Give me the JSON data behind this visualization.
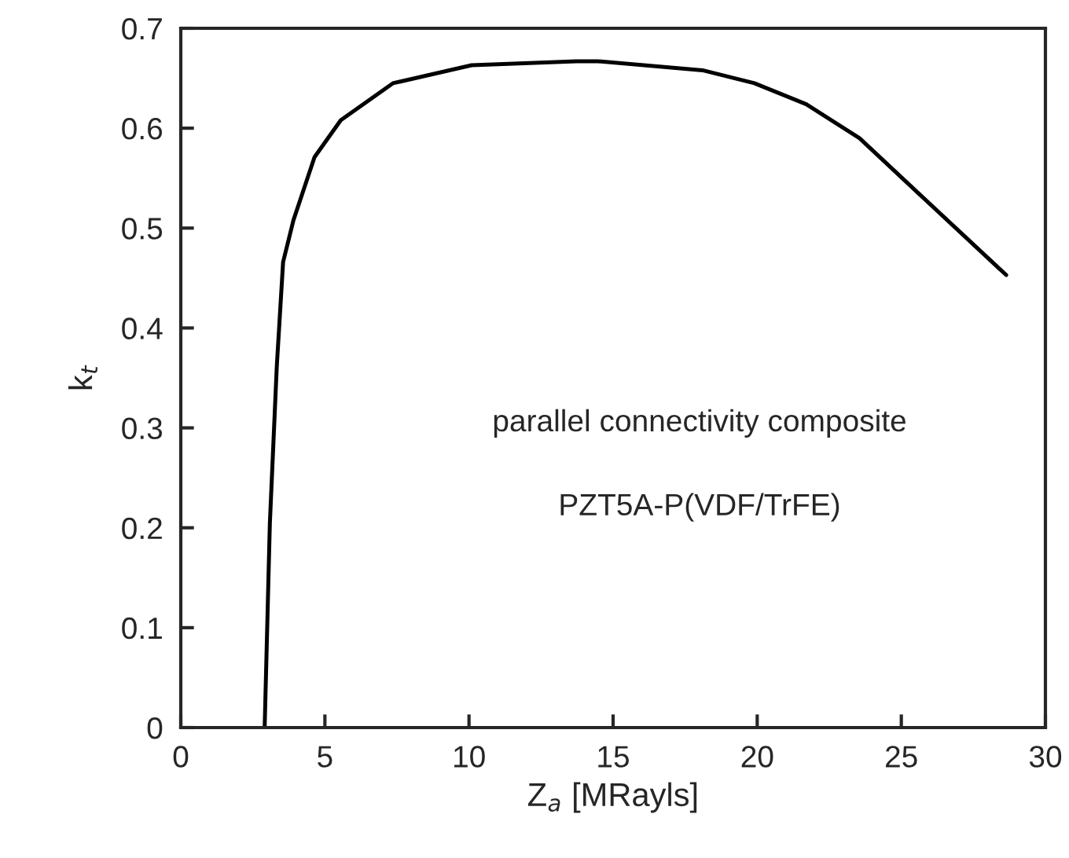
{
  "chart_data": {
    "type": "line",
    "xlabel": "Z$_{a}$ [MRayls]",
    "ylabel": "k$_{t}$",
    "annotations": [
      "parallel connectivity composite",
      "PZT5A-P(VDF/TrFE)"
    ],
    "series": [
      {
        "color": "#000000",
        "x": [
          2.91,
          3.09,
          3.33,
          3.55,
          3.91,
          4.64,
          5.55,
          7.36,
          10.09,
          13.73,
          14.46,
          18.1,
          19.9,
          21.7,
          23.55,
          25.7,
          28.64
        ],
        "values": [
          0,
          0.204,
          0.361,
          0.466,
          0.508,
          0.571,
          0.608,
          0.645,
          0.663,
          0.667,
          0.667,
          0.658,
          0.645,
          0.624,
          0.59,
          0.532,
          0.453
        ]
      }
    ],
    "xlim": [
      0,
      30
    ],
    "xticks": [
      0,
      5,
      10,
      15,
      20,
      25,
      30
    ],
    "ylim": [
      0,
      0.7
    ],
    "yticks": [
      0,
      0.1,
      0.2,
      0.3,
      0.4,
      0.5,
      0.6,
      0.7
    ],
    "grid": false,
    "legend": false,
    "marker": "none",
    "line_style": "solid"
  }
}
